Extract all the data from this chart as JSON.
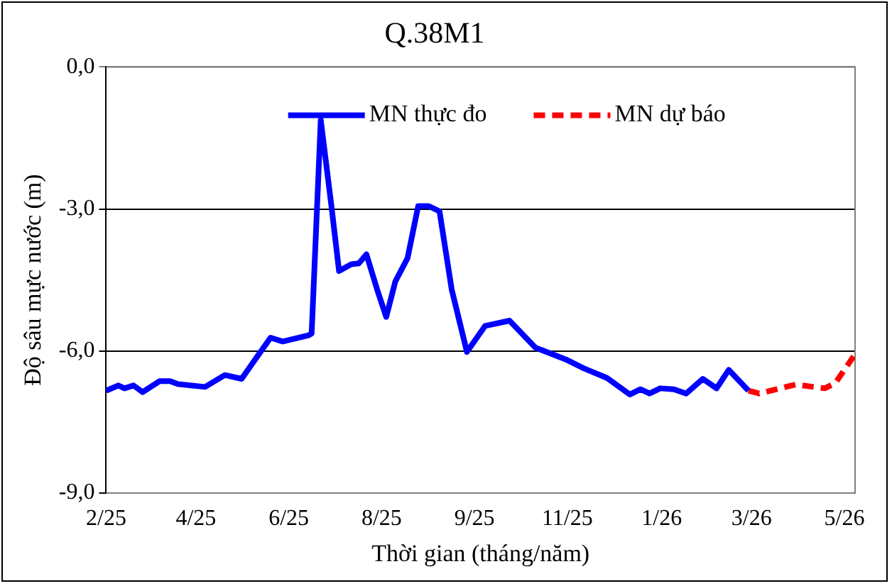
{
  "chart_data": {
    "type": "line",
    "title": "Q.38M1",
    "xlabel": "Thời gian (tháng/năm)",
    "ylabel": "Độ sâu mực nước (m)",
    "xlim": [
      "2025-02-01",
      "2026-06-08"
    ],
    "xticks": [
      {
        "value": "2025-02-01",
        "label": "2/25"
      },
      {
        "value": "2025-04-01",
        "label": "4/25"
      },
      {
        "value": "2025-06-01",
        "label": "6/25"
      },
      {
        "value": "2025-08-01",
        "label": "8/25"
      },
      {
        "value": "2025-10-01",
        "label": "9/25"
      },
      {
        "value": "2025-12-01",
        "label": "11/25"
      },
      {
        "value": "2026-02-01",
        "label": "1/26"
      },
      {
        "value": "2026-04-01",
        "label": "3/26"
      },
      {
        "value": "2026-06-01",
        "label": "5/26"
      }
    ],
    "ylim": [
      -9,
      0
    ],
    "yticks": [
      {
        "value": -9,
        "label": "-9,0"
      },
      {
        "value": -6,
        "label": "-6,0"
      },
      {
        "value": -3,
        "label": "-3,0"
      },
      {
        "value": 0,
        "label": "0,0"
      }
    ],
    "grid": "y",
    "legend": "top",
    "marker": "none",
    "series": [
      {
        "name": "MN thực đo",
        "color": "#0000ff",
        "line_style": "solid",
        "x": [
          "2025-02-01",
          "2025-02-09",
          "2025-02-13",
          "2025-02-19",
          "2025-02-25",
          "2025-03-08",
          "2025-03-15",
          "2025-03-20",
          "2025-04-07",
          "2025-04-20",
          "2025-05-01",
          "2025-05-11",
          "2025-05-20",
          "2025-05-28",
          "2025-06-14",
          "2025-06-16",
          "2025-06-22",
          "2025-06-29",
          "2025-07-04",
          "2025-07-12",
          "2025-07-17",
          "2025-07-22",
          "2025-07-29",
          "2025-08-04",
          "2025-08-10",
          "2025-08-18",
          "2025-08-25",
          "2025-09-01",
          "2025-09-08",
          "2025-09-16",
          "2025-09-26",
          "2025-10-08",
          "2025-10-24",
          "2025-11-10",
          "2025-11-30",
          "2025-12-12",
          "2025-12-27",
          "2026-01-11",
          "2026-01-18",
          "2026-01-24",
          "2026-01-31",
          "2026-02-09",
          "2026-02-17",
          "2026-02-28",
          "2026-03-09",
          "2026-03-17",
          "2026-03-30"
        ],
        "values": [
          -6.84,
          -6.73,
          -6.79,
          -6.73,
          -6.87,
          -6.64,
          -6.64,
          -6.7,
          -6.76,
          -6.51,
          -6.59,
          -6.13,
          -5.72,
          -5.8,
          -5.67,
          -5.63,
          -1.12,
          -2.94,
          -4.31,
          -4.17,
          -4.15,
          -3.96,
          -4.7,
          -5.28,
          -4.53,
          -4.04,
          -2.94,
          -2.94,
          -3.05,
          -4.7,
          -6.02,
          -5.47,
          -5.36,
          -5.93,
          -6.18,
          -6.37,
          -6.57,
          -6.92,
          -6.81,
          -6.9,
          -6.79,
          -6.81,
          -6.9,
          -6.59,
          -6.79,
          -6.4,
          -6.84
        ]
      },
      {
        "name": "MN dự báo",
        "color": "#ff0000",
        "line_style": "dashed",
        "x": [
          "2026-03-30",
          "2026-04-06",
          "2026-04-30",
          "2026-05-19",
          "2026-05-26",
          "2026-06-08"
        ],
        "values": [
          -6.84,
          -6.9,
          -6.71,
          -6.79,
          -6.68,
          -6.07
        ]
      }
    ]
  }
}
